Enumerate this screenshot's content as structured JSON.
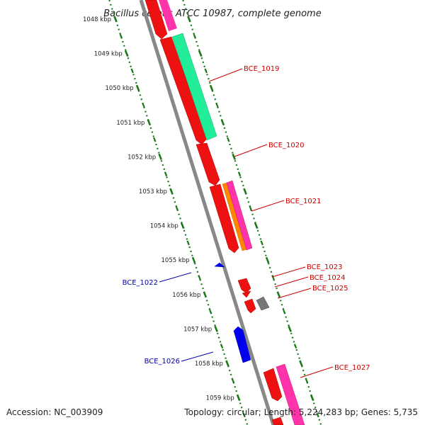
{
  "title": "Bacillus cereus ATCC 10987, complete genome",
  "footer": {
    "accession": "Accession: NC_003909",
    "summary": "Topology: circular; Length: 5,224,283 bp; Genes: 5,735"
  },
  "colors": {
    "backbone": "#888888",
    "ruler": "#1a7a1a",
    "forward_label": "#cc0000",
    "reverse_label": "#0000aa"
  },
  "ticks": [
    {
      "kbp": 1048,
      "label": "1048 kbp"
    },
    {
      "kbp": 1049,
      "label": "1049 kbp"
    },
    {
      "kbp": 1050,
      "label": "1050 kbp"
    },
    {
      "kbp": 1051,
      "label": "1051 kbp"
    },
    {
      "kbp": 1052,
      "label": "1052 kbp"
    },
    {
      "kbp": 1053,
      "label": "1053 kbp"
    },
    {
      "kbp": 1054,
      "label": "1054 kbp"
    },
    {
      "kbp": 1055,
      "label": "1055 kbp"
    },
    {
      "kbp": 1056,
      "label": "1056 kbp"
    },
    {
      "kbp": 1057,
      "label": "1057 kbp"
    },
    {
      "kbp": 1058,
      "label": "1058 kbp"
    },
    {
      "kbp": 1059,
      "label": "1059 kbp"
    }
  ],
  "genes": [
    {
      "id": "BCE_1019",
      "strand": "+"
    },
    {
      "id": "BCE_1020",
      "strand": "+"
    },
    {
      "id": "BCE_1021",
      "strand": "+"
    },
    {
      "id": "BCE_1022",
      "strand": "-"
    },
    {
      "id": "BCE_1023",
      "strand": "+"
    },
    {
      "id": "BCE_1024",
      "strand": "+"
    },
    {
      "id": "BCE_1025",
      "strand": "+"
    },
    {
      "id": "BCE_1026",
      "strand": "-"
    },
    {
      "id": "BCE_1027",
      "strand": "+"
    }
  ]
}
